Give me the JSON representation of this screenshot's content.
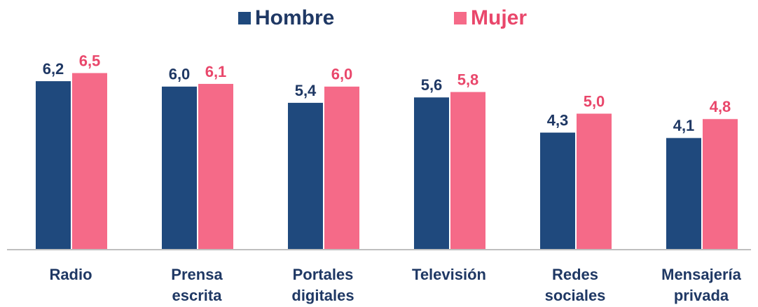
{
  "chart_data": {
    "type": "bar",
    "categories": [
      "Radio",
      "Prensa escrita",
      "Portales digitales",
      "Televisión",
      "Redes sociales",
      "Mensajería privada"
    ],
    "series": [
      {
        "name": "Hombre",
        "color": "#1f497d",
        "values": [
          6.2,
          6.0,
          5.4,
          5.6,
          4.3,
          4.1
        ],
        "value_labels": [
          "6,2",
          "6,0",
          "5,4",
          "5,6",
          "4,3",
          "4,1"
        ]
      },
      {
        "name": "Mujer",
        "color": "#f56a88",
        "values": [
          6.5,
          6.1,
          6.0,
          5.8,
          5.0,
          4.8
        ],
        "value_labels": [
          "6,5",
          "6,1",
          "6,0",
          "5,8",
          "5,0",
          "4,8"
        ]
      }
    ],
    "ylim": [
      0,
      9.2
    ],
    "legend": "top"
  }
}
